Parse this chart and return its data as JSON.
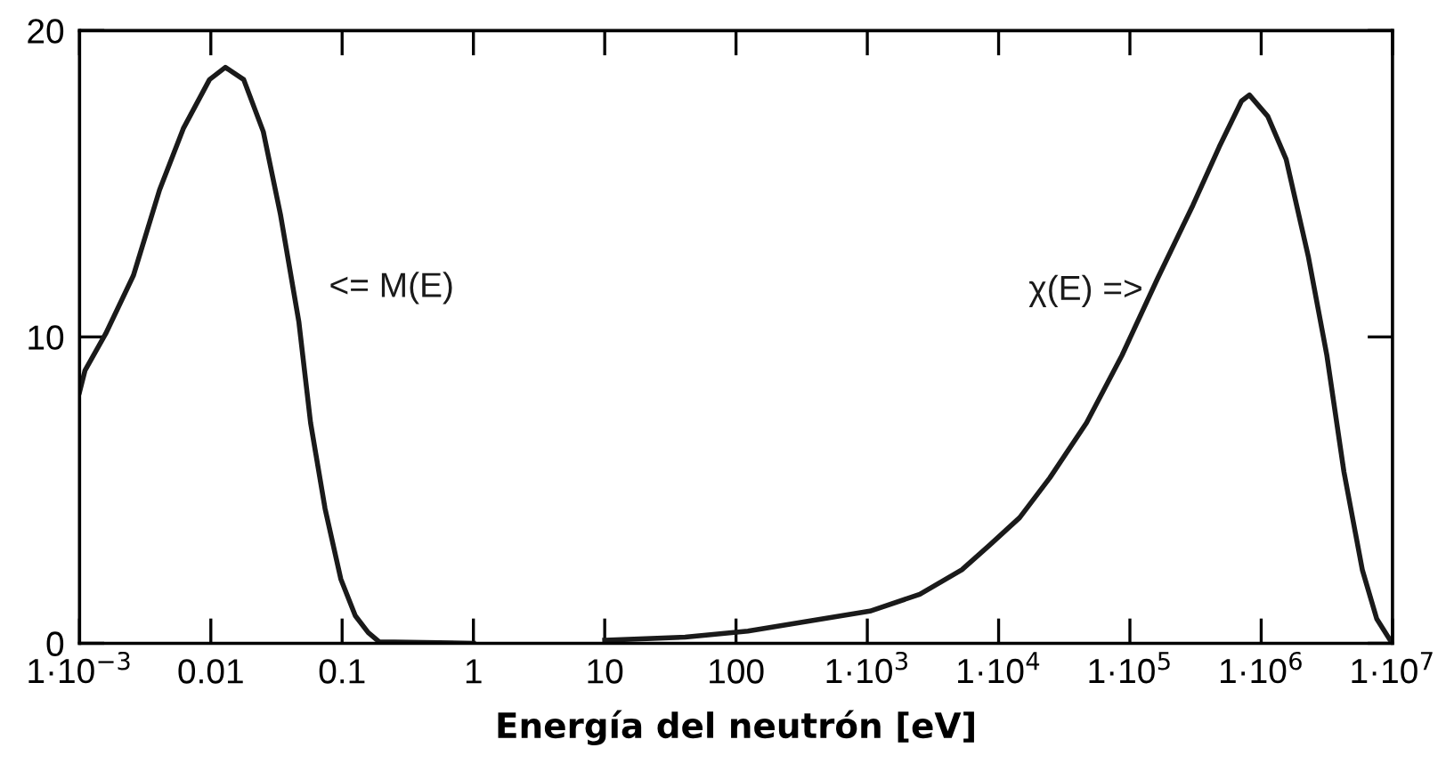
{
  "chart_data": {
    "type": "line",
    "xlabel": "Energía del neutrón [eV]",
    "log": "x",
    "grid": false,
    "legend": false,
    "marker": "none",
    "line_style": "solid",
    "xlim": [
      0.001,
      10000000
    ],
    "ylim": [
      0,
      20
    ],
    "xticks": [
      {
        "value": 0.001,
        "label": "1·10$^{−3}$"
      },
      0.01,
      0.1,
      1,
      10,
      100,
      {
        "value": 1000,
        "label": "1·10$^{3}$"
      },
      {
        "value": 10000,
        "label": "1·10$^{4}$"
      },
      {
        "value": 100000,
        "label": "1·10$^{5}$"
      },
      {
        "value": 1000000,
        "label": "1·10$^{6}$"
      },
      {
        "value": 10000000,
        "label": "1·10$^{7}$"
      }
    ],
    "yticks": [
      0,
      10,
      20
    ],
    "series": [
      {
        "name": "<= M(E)",
        "color": "#1a1a1a",
        "x": [
          0.001,
          0.0011,
          0.00158,
          0.00257,
          0.00407,
          0.00617,
          0.00977,
          0.0129,
          0.0178,
          0.0251,
          0.0339,
          0.0468,
          0.0575,
          0.0741,
          0.0977,
          0.126,
          0.158,
          0.191,
          1
        ],
        "values": [
          8.2,
          8.9,
          10.1,
          12.0,
          14.8,
          16.8,
          18.4,
          18.8,
          18.4,
          16.7,
          14.0,
          10.5,
          7.2,
          4.4,
          2.1,
          0.9,
          0.35,
          0.05,
          0
        ]
      },
      {
        "name": "χ(E) =>",
        "color": "#1a1a1a",
        "x": [
          10,
          41,
          123,
          1047,
          2512,
          5248,
          8511,
          14454,
          24547,
          46774,
          87096,
          162181,
          301995,
          478630,
          707946,
          812831,
          1122018,
          1548817,
          2290868,
          3162278,
          4265795,
          5888437,
          7585776,
          9772372
        ],
        "values": [
          0.1,
          0.2,
          0.4,
          1.05,
          1.6,
          2.4,
          3.2,
          4.1,
          5.4,
          7.2,
          9.4,
          11.9,
          14.3,
          16.2,
          17.7,
          17.9,
          17.2,
          15.8,
          12.6,
          9.4,
          5.6,
          2.4,
          0.8,
          0.05
        ]
      }
    ]
  }
}
